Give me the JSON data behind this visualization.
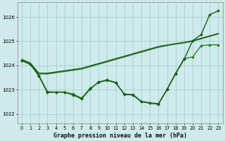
{
  "xlabel": "Graphe pression niveau de la mer (hPa)",
  "background_color": "#ceeaea",
  "grid_color": "#a8d0d0",
  "xlim": [
    -0.5,
    23.5
  ],
  "ylim": [
    1021.6,
    1026.6
  ],
  "yticks": [
    1022,
    1023,
    1024,
    1025,
    1026
  ],
  "xticks": [
    0,
    1,
    2,
    3,
    4,
    5,
    6,
    7,
    8,
    9,
    10,
    11,
    12,
    13,
    14,
    15,
    16,
    17,
    18,
    19,
    20,
    21,
    22,
    23
  ],
  "series": [
    {
      "x": [
        0,
        1,
        2,
        3,
        4,
        5,
        6,
        7,
        8,
        9,
        10,
        11,
        12,
        13,
        14,
        15,
        16,
        17,
        18,
        19,
        20,
        21,
        22,
        23
      ],
      "y": [
        1024.2,
        1024.05,
        1023.65,
        1023.65,
        1023.7,
        1023.75,
        1023.8,
        1023.85,
        1023.95,
        1024.05,
        1024.15,
        1024.25,
        1024.35,
        1024.45,
        1024.55,
        1024.65,
        1024.75,
        1024.82,
        1024.88,
        1024.93,
        1025.0,
        1025.1,
        1025.2,
        1025.3
      ],
      "color": "#2a7a2a",
      "linewidth": 1.0,
      "marker": null
    },
    {
      "x": [
        0,
        1,
        2,
        3,
        4,
        5,
        6,
        7,
        8,
        9,
        10,
        11,
        12,
        13,
        14,
        15,
        16,
        17,
        18,
        19,
        20,
        21,
        22,
        23
      ],
      "y": [
        1024.25,
        1024.1,
        1023.68,
        1023.68,
        1023.73,
        1023.78,
        1023.83,
        1023.88,
        1023.98,
        1024.08,
        1024.18,
        1024.28,
        1024.38,
        1024.48,
        1024.58,
        1024.68,
        1024.78,
        1024.84,
        1024.9,
        1024.95,
        1025.02,
        1025.12,
        1025.22,
        1025.32
      ],
      "color": "#1a5a1a",
      "linewidth": 1.0,
      "marker": null
    },
    {
      "x": [
        0,
        1,
        2,
        3,
        4,
        5,
        6,
        7,
        8,
        9,
        10,
        11,
        12,
        13,
        14,
        15,
        16,
        17,
        18,
        19,
        20,
        21,
        22,
        23
      ],
      "y": [
        1024.2,
        1024.05,
        1023.6,
        1022.92,
        1022.9,
        1022.9,
        1022.82,
        1022.65,
        1023.05,
        1023.3,
        1023.38,
        1023.28,
        1022.82,
        1022.8,
        1022.52,
        1022.46,
        1022.42,
        1023.02,
        1023.68,
        1024.28,
        1024.35,
        1024.82,
        1024.85,
        1024.85
      ],
      "color": "#2a7a2a",
      "linewidth": 1.0,
      "marker": "D",
      "markersize": 2.0
    },
    {
      "x": [
        0,
        1,
        2,
        3,
        4,
        5,
        6,
        7,
        8,
        9,
        10,
        11,
        12,
        13,
        14,
        15,
        16,
        17,
        18,
        19,
        20,
        21,
        22,
        23
      ],
      "y": [
        1024.2,
        1024.05,
        1023.57,
        1022.88,
        1022.9,
        1022.9,
        1022.78,
        1022.62,
        1023.02,
        1023.32,
        1023.4,
        1023.3,
        1022.8,
        1022.78,
        1022.5,
        1022.44,
        1022.4,
        1023.0,
        1023.65,
        1024.25,
        1025.02,
        1025.28,
        1026.1,
        1026.25
      ],
      "color": "#1a5a1a",
      "linewidth": 1.0,
      "marker": "D",
      "markersize": 2.0
    }
  ]
}
